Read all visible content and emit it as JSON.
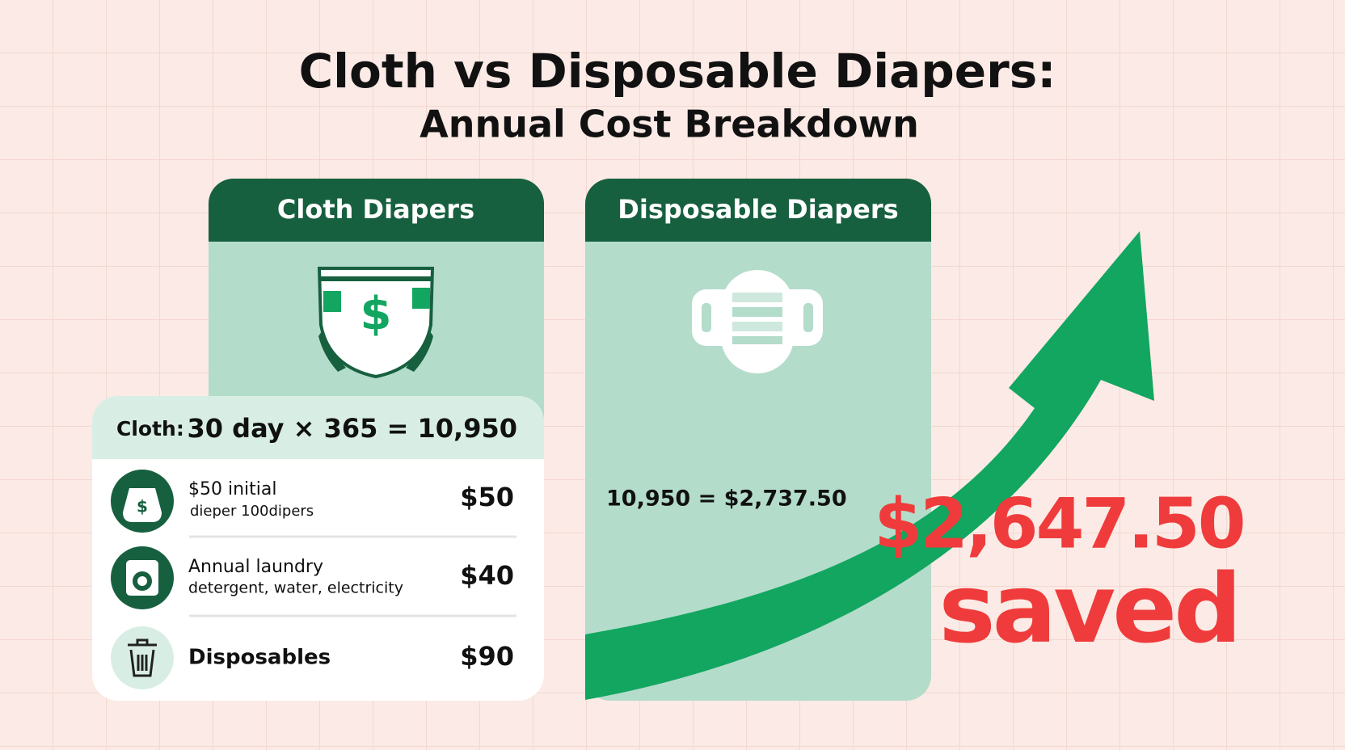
{
  "header": {
    "title": "Cloth vs Disposable Diapers:",
    "subtitle": "Annual Cost Breakdown"
  },
  "cloth_card": {
    "title": "Cloth Diapers"
  },
  "disposable_card": {
    "title": "Disposable Diapers",
    "total": "10,950 = $2,737.50"
  },
  "breakdown": {
    "label": "Cloth:",
    "formula": "30 day × 365 = 10,950",
    "rows": [
      {
        "title": "$50 initial",
        "detail": "dieper 100dipers",
        "amount": "$50"
      },
      {
        "title": "Annual laundry",
        "detail": "detergent, water, electricity",
        "amount": "$40"
      },
      {
        "title": "Disposables",
        "amount": "$90"
      }
    ]
  },
  "savings": {
    "amount": "$2,647.50",
    "label": "saved"
  }
}
